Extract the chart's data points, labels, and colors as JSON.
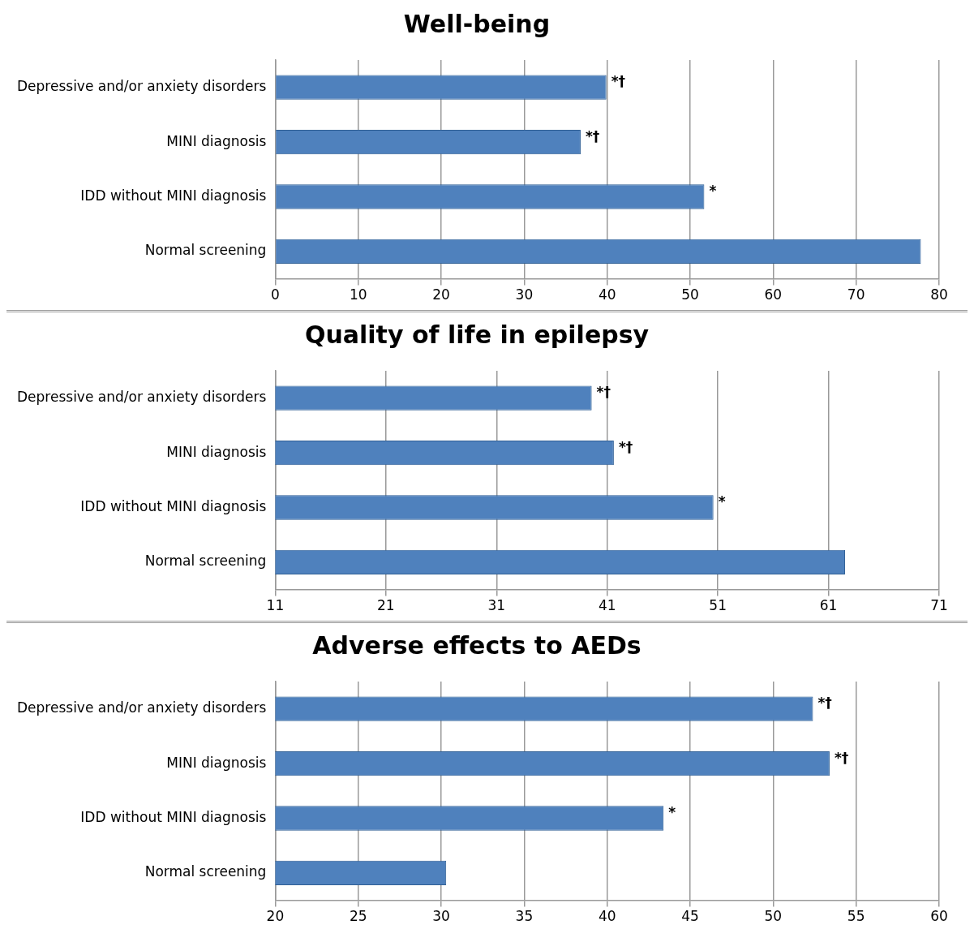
{
  "chart_data": [
    {
      "type": "bar",
      "title": "Well-being",
      "orientation": "horizontal",
      "categories": [
        "Depressive and/or anxiety disorders",
        "MINI diagnosis",
        "IDD without MINI diagnosis",
        "Normal screening"
      ],
      "values": [
        39.9,
        36.8,
        51.7,
        77.8
      ],
      "color": "#4f81bd",
      "xlim": [
        0,
        80
      ],
      "xticks": [
        0,
        10,
        20,
        30,
        40,
        50,
        60,
        70,
        80
      ],
      "grid": "x",
      "legend": false,
      "annotations": [
        {
          "text": "*†",
          "x": 39.9,
          "y": "Depressive and/or anxiety disorders"
        },
        {
          "text": "*†",
          "x": 36.8,
          "y": "MINI diagnosis"
        },
        {
          "text": "*",
          "x": 51.7,
          "y": "IDD without MINI diagnosis"
        }
      ]
    },
    {
      "type": "bar",
      "title": "Quality of life in epilepsy",
      "orientation": "horizontal",
      "categories": [
        "Depressive and/or anxiety disorders",
        "MINI diagnosis",
        "IDD without MINI diagnosis",
        "Normal screening"
      ],
      "values": [
        39.6,
        41.6,
        50.6,
        62.5
      ],
      "color": "#4f81bd",
      "xlim": [
        11,
        71
      ],
      "xticks": [
        11,
        21,
        31,
        41,
        51,
        61,
        71
      ],
      "grid": "x",
      "legend": false,
      "annotations": [
        {
          "text": "*†",
          "x": 39.6,
          "y": "Depressive and/or anxiety disorders"
        },
        {
          "text": "*†",
          "x": 41.6,
          "y": "MINI diagnosis"
        },
        {
          "text": "*",
          "x": 50.6,
          "y": "IDD without MINI diagnosis"
        }
      ]
    },
    {
      "type": "bar",
      "title": "Adverse effects to AEDs",
      "orientation": "horizontal",
      "categories": [
        "Depressive and/or anxiety disorders",
        "MINI diagnosis",
        "IDD without MINI diagnosis",
        "Normal screening"
      ],
      "values": [
        52.4,
        53.4,
        43.4,
        30.3
      ],
      "color": "#4f81bd",
      "xlim": [
        20,
        60
      ],
      "xticks": [
        20,
        25,
        30,
        35,
        40,
        45,
        50,
        55,
        60
      ],
      "grid": "x",
      "legend": false,
      "annotations": [
        {
          "text": "*†",
          "x": 52.4,
          "y": "Depressive and/or anxiety disorders"
        },
        {
          "text": "*†",
          "x": 53.4,
          "y": "MINI diagnosis"
        },
        {
          "text": "*",
          "x": 43.4,
          "y": "IDD without MINI diagnosis"
        }
      ]
    }
  ]
}
